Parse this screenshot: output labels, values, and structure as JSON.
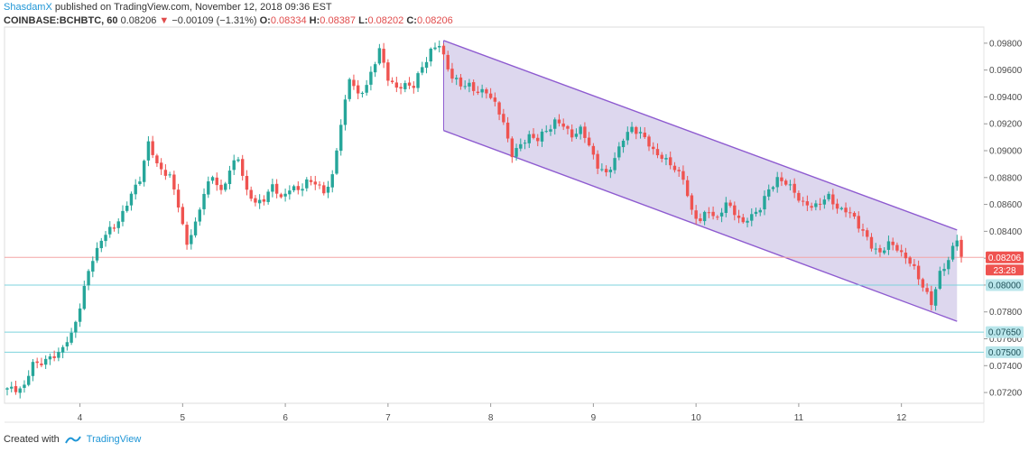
{
  "header": {
    "author": "ShasdamX",
    "published": " published on TradingView.com, November 12, 2018 09:36 EST",
    "symbol": "COINBASE:BCHBTC, 60",
    "last": "0.08206",
    "arrow": "▼",
    "change": "−0.00109 (−1.31%)",
    "open_label": "O:",
    "open": "0.08334",
    "high_label": "H:",
    "high": "0.08387",
    "low_label": "L:",
    "low": "0.08202",
    "close_label": "C:",
    "close": "0.08206"
  },
  "footer": {
    "created": "Created with",
    "brand": "TradingView"
  },
  "colors": {
    "up": "#26a69a",
    "down": "#ef5350",
    "channel_fill": "#d9d3ec",
    "channel_line": "#8e5bd0",
    "hline": "#7dd3dc"
  },
  "chart_data": {
    "type": "candlestick",
    "price_ticks": [
      "0.09800",
      "0.09600",
      "0.09400",
      "0.09200",
      "0.09000",
      "0.08800",
      "0.08600",
      "0.08400",
      "0.08200",
      "0.08000",
      "0.07800",
      "0.07600",
      "0.07400",
      "0.07200"
    ],
    "date_ticks": [
      {
        "label": "4",
        "idx": 17
      },
      {
        "label": "5",
        "idx": 41
      },
      {
        "label": "6",
        "idx": 65
      },
      {
        "label": "7",
        "idx": 89
      },
      {
        "label": "8",
        "idx": 113
      },
      {
        "label": "9",
        "idx": 137
      },
      {
        "label": "10",
        "idx": 161
      },
      {
        "label": "11",
        "idx": 185
      },
      {
        "label": "12",
        "idx": 209
      }
    ],
    "last_price": {
      "value": 0.08206,
      "label": "0.08206",
      "countdown": "23:28"
    },
    "horizontal_levels": [
      {
        "value": 0.08,
        "label": "0.08000"
      },
      {
        "value": 0.0765,
        "label": "0.07650"
      },
      {
        "value": 0.075,
        "label": "0.07500"
      }
    ],
    "channel": {
      "start_idx": 102,
      "end_idx": 222,
      "upper": [
        0.0982,
        0.0841
      ],
      "lower": [
        0.0915,
        0.0773
      ]
    },
    "close_anchors": [
      [
        0,
        0.0722
      ],
      [
        4,
        0.0724
      ],
      [
        6,
        0.0742
      ],
      [
        9,
        0.0743
      ],
      [
        12,
        0.075
      ],
      [
        15,
        0.0762
      ],
      [
        17,
        0.0785
      ],
      [
        19,
        0.081
      ],
      [
        22,
        0.0835
      ],
      [
        25,
        0.0843
      ],
      [
        28,
        0.086
      ],
      [
        31,
        0.088
      ],
      [
        33,
        0.0905
      ],
      [
        35,
        0.089
      ],
      [
        38,
        0.088
      ],
      [
        40,
        0.086
      ],
      [
        42,
        0.083
      ],
      [
        44,
        0.0845
      ],
      [
        46,
        0.087
      ],
      [
        48,
        0.088
      ],
      [
        50,
        0.087
      ],
      [
        52,
        0.0885
      ],
      [
        54,
        0.0895
      ],
      [
        56,
        0.087
      ],
      [
        58,
        0.086
      ],
      [
        60,
        0.0865
      ],
      [
        62,
        0.0873
      ],
      [
        64,
        0.0865
      ],
      [
        66,
        0.0872
      ],
      [
        68,
        0.087
      ],
      [
        70,
        0.0878
      ],
      [
        72,
        0.0875
      ],
      [
        74,
        0.087
      ],
      [
        76,
        0.088
      ],
      [
        78,
        0.092
      ],
      [
        80,
        0.0955
      ],
      [
        82,
        0.094
      ],
      [
        84,
        0.095
      ],
      [
        86,
        0.0965
      ],
      [
        87,
        0.0975
      ],
      [
        89,
        0.0955
      ],
      [
        91,
        0.0945
      ],
      [
        93,
        0.095
      ],
      [
        95,
        0.0948
      ],
      [
        97,
        0.0962
      ],
      [
        99,
        0.0975
      ],
      [
        101,
        0.0978
      ],
      [
        102,
        0.097
      ],
      [
        104,
        0.0955
      ],
      [
        106,
        0.0948
      ],
      [
        108,
        0.095
      ],
      [
        110,
        0.0942
      ],
      [
        112,
        0.0945
      ],
      [
        114,
        0.0935
      ],
      [
        116,
        0.092
      ],
      [
        118,
        0.0898
      ],
      [
        120,
        0.0903
      ],
      [
        122,
        0.0912
      ],
      [
        124,
        0.0908
      ],
      [
        126,
        0.0915
      ],
      [
        128,
        0.0922
      ],
      [
        130,
        0.0918
      ],
      [
        132,
        0.0912
      ],
      [
        134,
        0.0915
      ],
      [
        136,
        0.0905
      ],
      [
        138,
        0.0888
      ],
      [
        140,
        0.0882
      ],
      [
        142,
        0.0895
      ],
      [
        144,
        0.0908
      ],
      [
        146,
        0.0918
      ],
      [
        148,
        0.0912
      ],
      [
        150,
        0.0905
      ],
      [
        152,
        0.0897
      ],
      [
        154,
        0.0892
      ],
      [
        156,
        0.0888
      ],
      [
        158,
        0.0878
      ],
      [
        160,
        0.0855
      ],
      [
        162,
        0.0848
      ],
      [
        164,
        0.0855
      ],
      [
        166,
        0.085
      ],
      [
        168,
        0.086
      ],
      [
        170,
        0.0855
      ],
      [
        172,
        0.0845
      ],
      [
        174,
        0.0852
      ],
      [
        176,
        0.0858
      ],
      [
        178,
        0.087
      ],
      [
        180,
        0.088
      ],
      [
        182,
        0.0875
      ],
      [
        184,
        0.087
      ],
      [
        186,
        0.086
      ],
      [
        188,
        0.0858
      ],
      [
        190,
        0.0862
      ],
      [
        192,
        0.0865
      ],
      [
        194,
        0.0858
      ],
      [
        196,
        0.0855
      ],
      [
        198,
        0.085
      ],
      [
        200,
        0.084
      ],
      [
        202,
        0.0828
      ],
      [
        204,
        0.0825
      ],
      [
        206,
        0.083
      ],
      [
        208,
        0.0828
      ],
      [
        210,
        0.082
      ],
      [
        212,
        0.0812
      ],
      [
        214,
        0.08
      ],
      [
        216,
        0.0785
      ],
      [
        218,
        0.081
      ],
      [
        220,
        0.0818
      ],
      [
        222,
        0.0835
      ],
      [
        223,
        0.0821
      ]
    ]
  }
}
